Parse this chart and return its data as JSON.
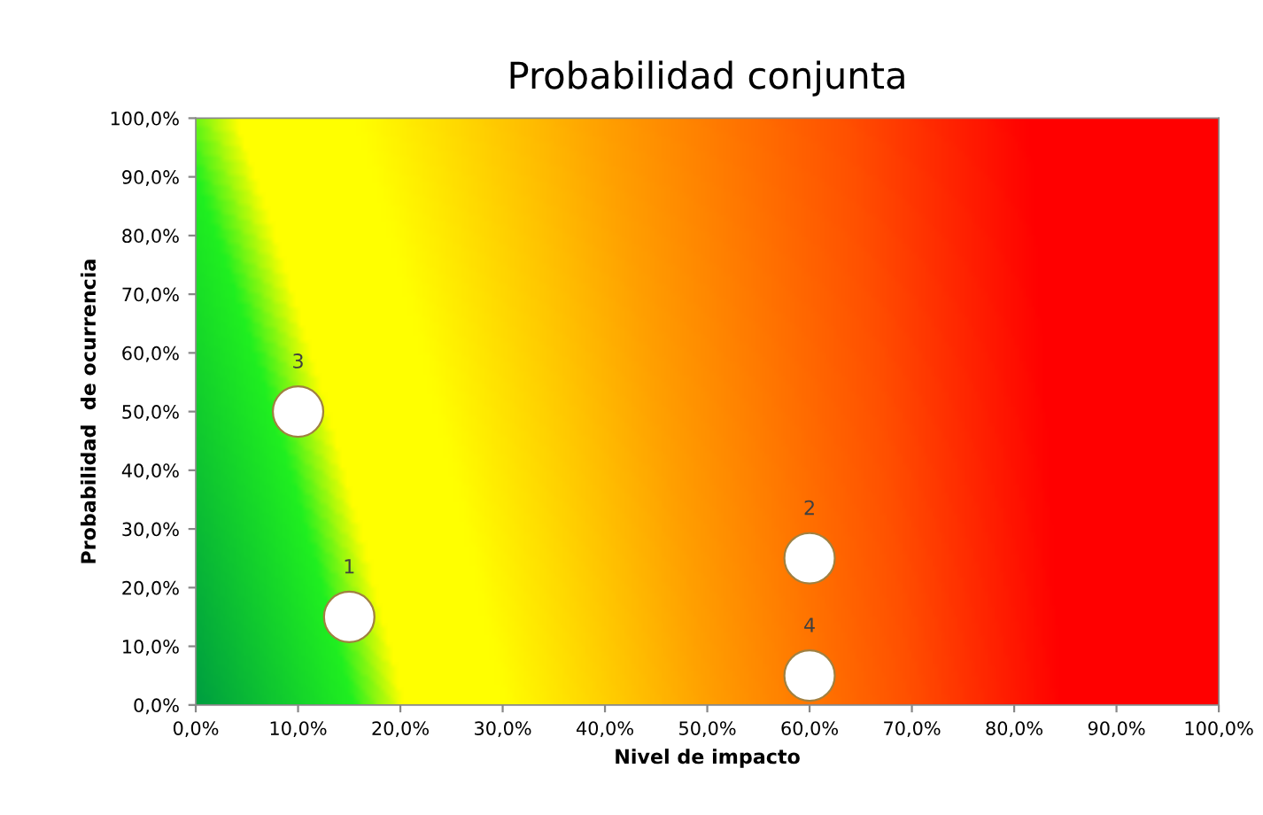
{
  "chart_data": {
    "type": "scatter",
    "title": "Probabilidad conjunta",
    "xlabel": "Nivel de impacto",
    "ylabel": "Probabilidad  de ocurrencia",
    "x": [
      15,
      60,
      10,
      60
    ],
    "values": [
      15,
      25,
      50,
      5
    ],
    "color": "#ffffff",
    "marker": "circle",
    "annotations": [
      {
        "text": "1",
        "x": 15,
        "y": 15
      },
      {
        "text": "2",
        "x": 60,
        "y": 25
      },
      {
        "text": "3",
        "x": 10,
        "y": 50
      },
      {
        "text": "4",
        "x": 60,
        "y": 5
      }
    ],
    "xlim": [
      0,
      100
    ],
    "ylim": [
      0,
      100
    ],
    "xticks": [
      {
        "value": 0,
        "label": "0,0%"
      },
      {
        "value": 10,
        "label": "10,0%"
      },
      {
        "value": 20,
        "label": "20,0%"
      },
      {
        "value": 30,
        "label": "30,0%"
      },
      {
        "value": 40,
        "label": "40,0%"
      },
      {
        "value": 50,
        "label": "50,0%"
      },
      {
        "value": 60,
        "label": "60,0%"
      },
      {
        "value": 70,
        "label": "70,0%"
      },
      {
        "value": 80,
        "label": "80,0%"
      },
      {
        "value": 90,
        "label": "90,0%"
      },
      {
        "value": 100,
        "label": "100,0%"
      }
    ],
    "yticks": [
      {
        "value": 0,
        "label": "0,0%"
      },
      {
        "value": 10,
        "label": "10,0%"
      },
      {
        "value": 20,
        "label": "20,0%"
      },
      {
        "value": 30,
        "label": "30,0%"
      },
      {
        "value": 40,
        "label": "40,0%"
      },
      {
        "value": 50,
        "label": "50,0%"
      },
      {
        "value": 60,
        "label": "60,0%"
      },
      {
        "value": 70,
        "label": "70,0%"
      },
      {
        "value": 80,
        "label": "80,0%"
      },
      {
        "value": 90,
        "label": "90,0%"
      },
      {
        "value": 100,
        "label": "100,0%"
      }
    ]
  }
}
